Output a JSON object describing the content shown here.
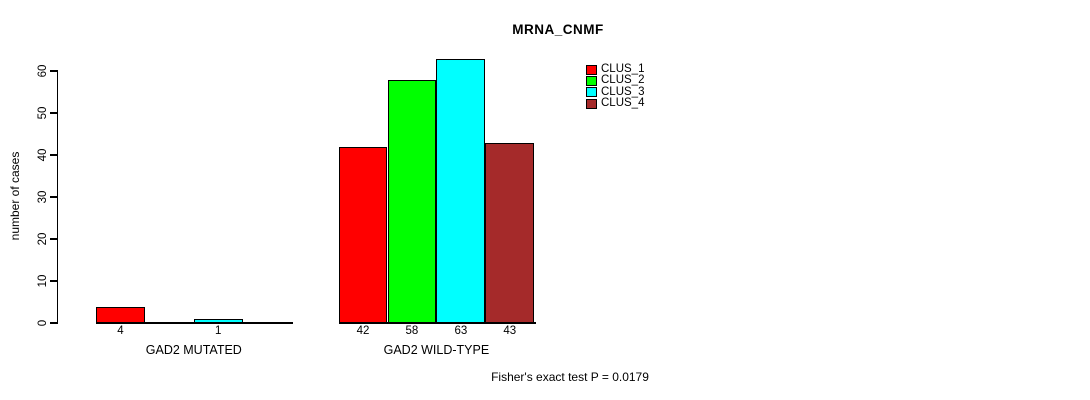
{
  "chart_data": {
    "type": "bar",
    "title": "MRNA_CNMF",
    "ylabel": "number of cases",
    "yticks": [
      0,
      10,
      20,
      30,
      40,
      50,
      60
    ],
    "ylim": [
      0,
      63
    ],
    "grid": false,
    "legend_position": "top-right",
    "categories": [
      "GAD2 MUTATED",
      "GAD2 WILD-TYPE"
    ],
    "series": [
      {
        "name": "CLUS_1",
        "color": "#ff0000",
        "values": [
          4,
          42
        ]
      },
      {
        "name": "CLUS_2",
        "color": "#00ff00",
        "values": [
          0,
          58
        ]
      },
      {
        "name": "CLUS_3",
        "color": "#00ffff",
        "values": [
          1,
          63
        ]
      },
      {
        "name": "CLUS_4",
        "color": "#a52a2a",
        "values": [
          0,
          43
        ]
      }
    ],
    "bar_value_label_rule": "value printed under each bar when value > 0",
    "annotation": "Fisher's exact test P = 0.0179"
  },
  "colors": {
    "axis": "#000000",
    "text": "#000000",
    "background": "#ffffff"
  }
}
